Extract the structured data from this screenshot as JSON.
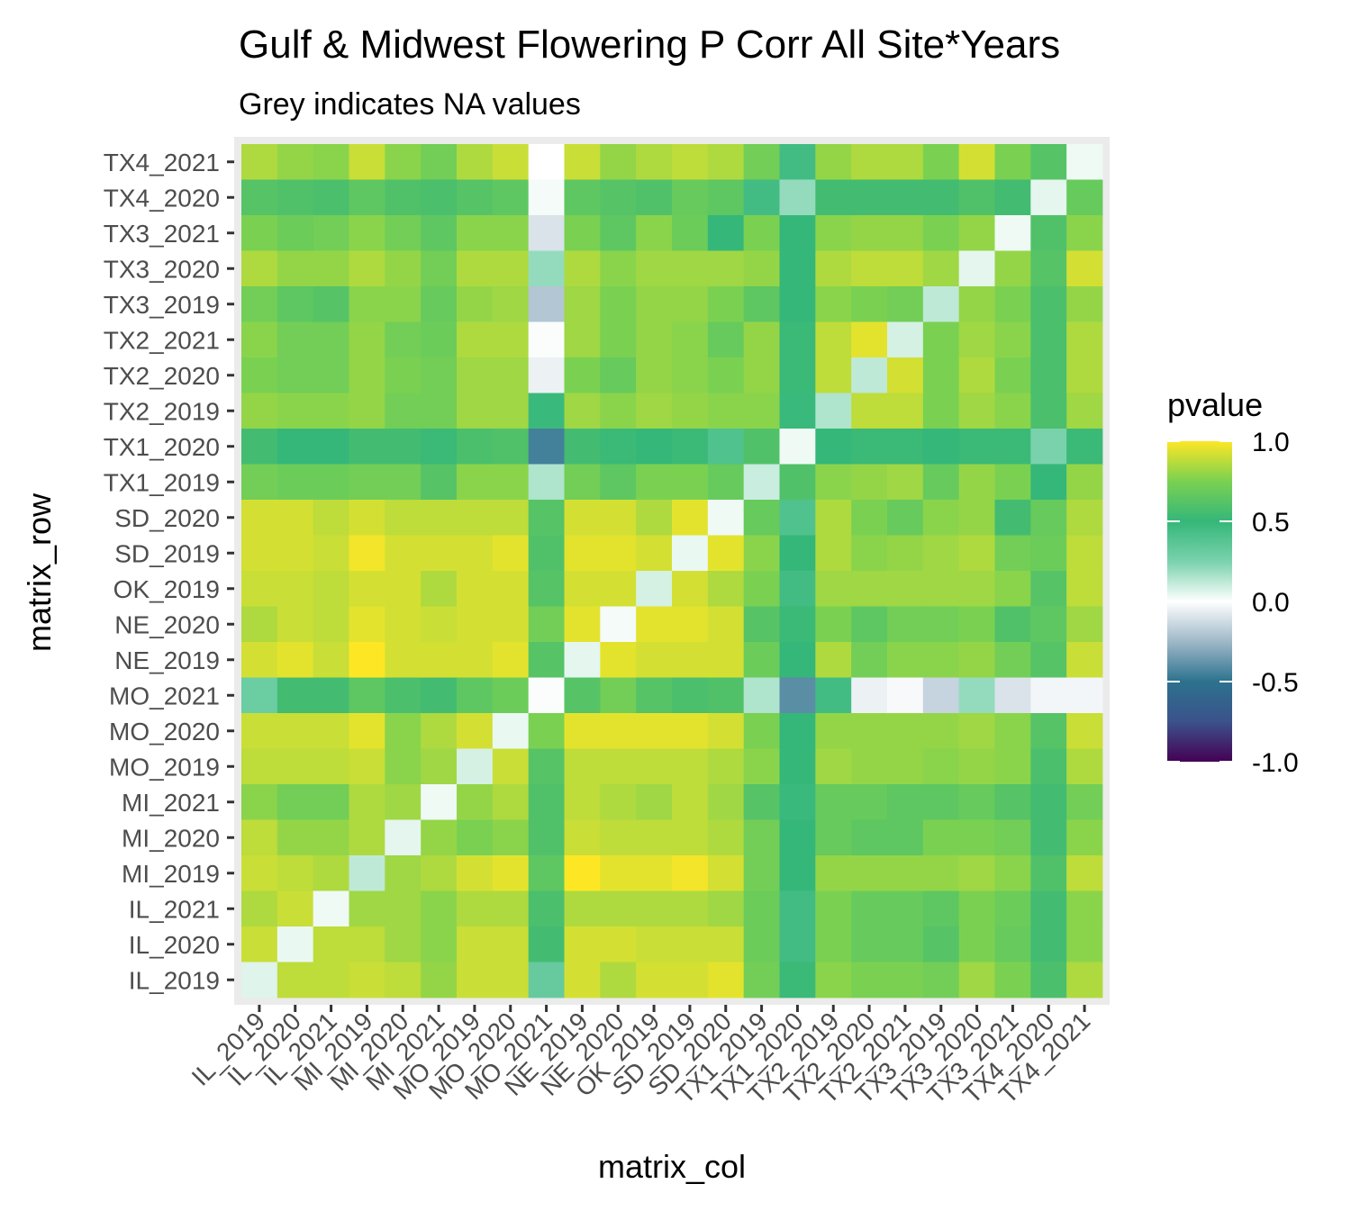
{
  "chart_data": {
    "type": "heatmap",
    "title": "Gulf & Midwest Flowering P Corr All Site*Years",
    "subtitle": "Grey indicates NA values",
    "xlabel": "matrix_col",
    "ylabel": "matrix_row",
    "legend": {
      "title": "pvalue",
      "position": "right",
      "ticks": [
        "1.0",
        "0.5",
        "0.0",
        "-0.5",
        "-1.0"
      ],
      "tick_values": [
        1.0,
        0.5,
        0.0,
        -0.5,
        -1.0
      ],
      "range": [
        -1,
        1
      ]
    },
    "categories": [
      "IL_2019",
      "IL_2020",
      "IL_2021",
      "MI_2019",
      "MI_2020",
      "MI_2021",
      "MO_2019",
      "MO_2020",
      "MO_2021",
      "NE_2019",
      "NE_2020",
      "OK_2019",
      "SD_2019",
      "SD_2020",
      "TX1_2019",
      "TX1_2020",
      "TX2_2019",
      "TX2_2020",
      "TX2_2021",
      "TX3_2019",
      "TX3_2020",
      "TX3_2021",
      "TX4_2020",
      "TX4_2021"
    ],
    "rows_top_to_bottom": [
      "TX4_2021",
      "TX4_2020",
      "TX3_2021",
      "TX3_2020",
      "TX3_2019",
      "TX2_2021",
      "TX2_2020",
      "TX2_2019",
      "TX1_2020",
      "TX1_2019",
      "SD_2020",
      "SD_2019",
      "OK_2019",
      "NE_2020",
      "NE_2019",
      "MO_2021",
      "MO_2020",
      "MO_2019",
      "MI_2021",
      "MI_2020",
      "MI_2019",
      "IL_2021",
      "IL_2020",
      "IL_2019"
    ],
    "values": [
      [
        0.85,
        0.8,
        0.78,
        0.9,
        0.78,
        0.72,
        0.85,
        0.9,
        0.0,
        0.9,
        0.8,
        0.85,
        0.88,
        0.85,
        0.72,
        0.45,
        0.8,
        0.85,
        0.85,
        0.75,
        0.92,
        0.75,
        0.62,
        0.03
      ],
      [
        0.62,
        0.6,
        0.58,
        0.65,
        0.6,
        0.58,
        0.62,
        0.65,
        0.02,
        0.65,
        0.62,
        0.6,
        0.68,
        0.65,
        0.45,
        0.2,
        0.55,
        0.55,
        0.55,
        0.55,
        0.6,
        0.55,
        0.05,
        0.68
      ],
      [
        0.75,
        0.7,
        0.72,
        0.78,
        0.72,
        0.65,
        0.78,
        0.78,
        -0.1,
        0.75,
        0.65,
        0.78,
        0.7,
        0.5,
        0.75,
        0.5,
        0.78,
        0.8,
        0.8,
        0.75,
        0.8,
        0.03,
        0.6,
        0.78
      ],
      [
        0.85,
        0.8,
        0.8,
        0.85,
        0.8,
        0.72,
        0.85,
        0.85,
        0.2,
        0.85,
        0.78,
        0.82,
        0.82,
        0.82,
        0.8,
        0.5,
        0.85,
        0.88,
        0.88,
        0.82,
        0.05,
        0.8,
        0.62,
        0.92
      ],
      [
        0.72,
        0.65,
        0.62,
        0.78,
        0.78,
        0.68,
        0.8,
        0.82,
        -0.2,
        0.82,
        0.75,
        0.8,
        0.8,
        0.75,
        0.65,
        0.5,
        0.78,
        0.75,
        0.72,
        0.12,
        0.8,
        0.75,
        0.58,
        0.8
      ],
      [
        0.78,
        0.72,
        0.72,
        0.8,
        0.72,
        0.7,
        0.85,
        0.85,
        0.01,
        0.82,
        0.75,
        0.8,
        0.78,
        0.68,
        0.8,
        0.52,
        0.88,
        0.95,
        0.08,
        0.75,
        0.82,
        0.78,
        0.58,
        0.85
      ],
      [
        0.75,
        0.72,
        0.72,
        0.8,
        0.75,
        0.72,
        0.82,
        0.82,
        -0.05,
        0.75,
        0.68,
        0.8,
        0.78,
        0.75,
        0.8,
        0.52,
        0.88,
        0.12,
        0.92,
        0.75,
        0.85,
        0.75,
        0.58,
        0.85
      ],
      [
        0.8,
        0.78,
        0.78,
        0.8,
        0.72,
        0.72,
        0.82,
        0.82,
        0.48,
        0.82,
        0.78,
        0.82,
        0.8,
        0.78,
        0.78,
        0.48,
        0.15,
        0.88,
        0.88,
        0.75,
        0.82,
        0.78,
        0.58,
        0.82
      ],
      [
        0.55,
        0.5,
        0.5,
        0.55,
        0.55,
        0.52,
        0.58,
        0.6,
        -0.45,
        0.55,
        0.52,
        0.5,
        0.52,
        0.4,
        0.6,
        0.03,
        0.5,
        0.52,
        0.52,
        0.5,
        0.52,
        0.52,
        0.25,
        0.52
      ],
      [
        0.72,
        0.7,
        0.7,
        0.72,
        0.72,
        0.62,
        0.78,
        0.78,
        0.15,
        0.72,
        0.65,
        0.75,
        0.75,
        0.68,
        0.1,
        0.6,
        0.78,
        0.8,
        0.82,
        0.68,
        0.8,
        0.75,
        0.5,
        0.8
      ],
      [
        0.92,
        0.92,
        0.88,
        0.92,
        0.88,
        0.88,
        0.88,
        0.88,
        0.62,
        0.92,
        0.92,
        0.85,
        0.95,
        0.03,
        0.68,
        0.4,
        0.85,
        0.75,
        0.68,
        0.78,
        0.8,
        0.55,
        0.68,
        0.85
      ],
      [
        0.92,
        0.92,
        0.9,
        0.98,
        0.92,
        0.92,
        0.92,
        0.95,
        0.6,
        0.95,
        0.95,
        0.92,
        0.04,
        0.95,
        0.78,
        0.5,
        0.85,
        0.78,
        0.8,
        0.82,
        0.85,
        0.72,
        0.7,
        0.88
      ],
      [
        0.9,
        0.9,
        0.88,
        0.92,
        0.92,
        0.85,
        0.92,
        0.92,
        0.62,
        0.92,
        0.92,
        0.08,
        0.92,
        0.85,
        0.75,
        0.45,
        0.82,
        0.82,
        0.82,
        0.82,
        0.82,
        0.78,
        0.62,
        0.88
      ],
      [
        0.85,
        0.9,
        0.88,
        0.95,
        0.92,
        0.9,
        0.92,
        0.92,
        0.72,
        0.95,
        0.02,
        0.95,
        0.95,
        0.92,
        0.62,
        0.52,
        0.75,
        0.65,
        0.72,
        0.72,
        0.75,
        0.6,
        0.65,
        0.82
      ],
      [
        0.92,
        0.95,
        0.9,
        1.0,
        0.92,
        0.92,
        0.92,
        0.95,
        0.62,
        0.05,
        0.95,
        0.92,
        0.92,
        0.92,
        0.7,
        0.5,
        0.85,
        0.72,
        0.78,
        0.78,
        0.8,
        0.72,
        0.62,
        0.9
      ],
      [
        0.3,
        0.55,
        0.55,
        0.65,
        0.58,
        0.55,
        0.65,
        0.7,
        0.01,
        0.62,
        0.72,
        0.62,
        0.58,
        0.6,
        0.15,
        -0.4,
        0.45,
        -0.05,
        -0.02,
        -0.15,
        0.2,
        -0.1,
        -0.03,
        -0.03
      ],
      [
        0.9,
        0.9,
        0.9,
        0.95,
        0.78,
        0.85,
        0.92,
        0.04,
        0.75,
        0.95,
        0.95,
        0.95,
        0.95,
        0.92,
        0.75,
        0.5,
        0.8,
        0.8,
        0.8,
        0.8,
        0.82,
        0.78,
        0.62,
        0.9
      ],
      [
        0.88,
        0.88,
        0.88,
        0.9,
        0.78,
        0.82,
        0.08,
        0.9,
        0.62,
        0.88,
        0.88,
        0.88,
        0.88,
        0.85,
        0.78,
        0.5,
        0.82,
        0.8,
        0.8,
        0.78,
        0.8,
        0.78,
        0.58,
        0.85
      ],
      [
        0.78,
        0.72,
        0.72,
        0.85,
        0.82,
        0.03,
        0.8,
        0.85,
        0.6,
        0.88,
        0.85,
        0.82,
        0.88,
        0.82,
        0.62,
        0.48,
        0.68,
        0.68,
        0.65,
        0.65,
        0.68,
        0.62,
        0.55,
        0.72
      ],
      [
        0.88,
        0.8,
        0.8,
        0.85,
        0.05,
        0.8,
        0.75,
        0.78,
        0.6,
        0.9,
        0.88,
        0.88,
        0.88,
        0.85,
        0.72,
        0.5,
        0.68,
        0.65,
        0.65,
        0.75,
        0.75,
        0.72,
        0.55,
        0.78
      ],
      [
        0.9,
        0.88,
        0.85,
        0.12,
        0.82,
        0.85,
        0.92,
        0.95,
        0.65,
        1.0,
        0.95,
        0.95,
        0.98,
        0.92,
        0.72,
        0.5,
        0.8,
        0.8,
        0.8,
        0.8,
        0.82,
        0.78,
        0.6,
        0.88
      ],
      [
        0.85,
        0.9,
        0.03,
        0.82,
        0.82,
        0.78,
        0.85,
        0.85,
        0.58,
        0.85,
        0.85,
        0.85,
        0.85,
        0.82,
        0.7,
        0.45,
        0.75,
        0.68,
        0.68,
        0.65,
        0.75,
        0.7,
        0.55,
        0.78
      ],
      [
        0.9,
        0.04,
        0.88,
        0.88,
        0.82,
        0.78,
        0.9,
        0.9,
        0.55,
        0.92,
        0.92,
        0.9,
        0.9,
        0.9,
        0.7,
        0.45,
        0.75,
        0.68,
        0.68,
        0.62,
        0.75,
        0.68,
        0.55,
        0.78
      ],
      [
        0.06,
        0.88,
        0.88,
        0.9,
        0.88,
        0.8,
        0.9,
        0.9,
        0.32,
        0.92,
        0.85,
        0.92,
        0.92,
        0.95,
        0.72,
        0.52,
        0.78,
        0.75,
        0.75,
        0.72,
        0.82,
        0.75,
        0.58,
        0.85
      ]
    ]
  }
}
